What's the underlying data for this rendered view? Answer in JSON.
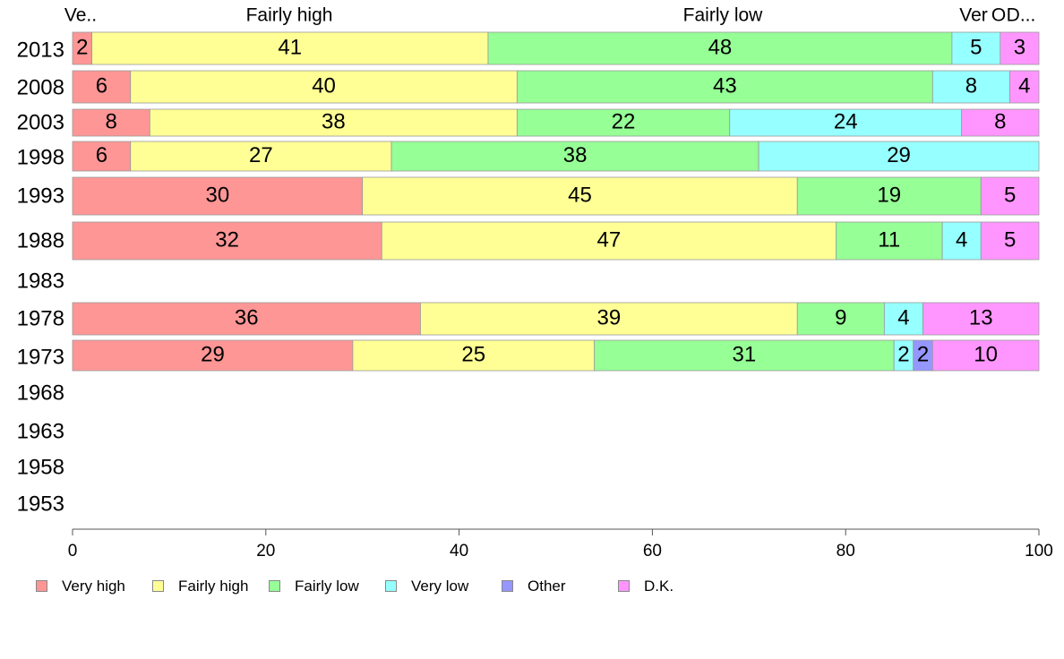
{
  "chart_data": {
    "type": "bar",
    "orientation": "horizontal",
    "stacked": true,
    "categories": [
      "2013",
      "2008",
      "2003",
      "1998",
      "1993",
      "1988",
      "1983",
      "1978",
      "1973",
      "1968",
      "1963",
      "1958",
      "1953"
    ],
    "series": [
      {
        "name": "Very high",
        "color": "#ff9696",
        "values": [
          2,
          6,
          8,
          6,
          30,
          32,
          null,
          36,
          29,
          null,
          null,
          null,
          null
        ]
      },
      {
        "name": "Fairly high",
        "color": "#ffff96",
        "values": [
          41,
          40,
          38,
          27,
          45,
          47,
          null,
          39,
          25,
          null,
          null,
          null,
          null
        ]
      },
      {
        "name": "Fairly low",
        "color": "#96ff96",
        "values": [
          48,
          43,
          22,
          38,
          19,
          11,
          null,
          9,
          31,
          null,
          null,
          null,
          null
        ]
      },
      {
        "name": "Very low",
        "color": "#96ffff",
        "values": [
          5,
          8,
          24,
          29,
          0,
          4,
          null,
          4,
          2,
          null,
          null,
          null,
          null
        ]
      },
      {
        "name": "Other",
        "color": "#9696ff",
        "values": [
          0,
          0,
          0,
          0,
          0,
          0,
          null,
          0,
          2,
          null,
          null,
          null,
          null
        ]
      },
      {
        "name": "D.K.",
        "color": "#ff96ff",
        "values": [
          3,
          4,
          8,
          0,
          5,
          5,
          null,
          13,
          10,
          null,
          null,
          null,
          null
        ]
      }
    ],
    "top_labels": [
      "Ve..",
      "Fairly high",
      "Fairly low",
      "Ver",
      "O",
      "D..."
    ],
    "xlim": [
      0,
      100
    ],
    "xticks": [
      0,
      20,
      40,
      60,
      80,
      100
    ],
    "title": "",
    "xlabel": "",
    "ylabel": "",
    "grid": false,
    "legend_position": "bottom"
  }
}
